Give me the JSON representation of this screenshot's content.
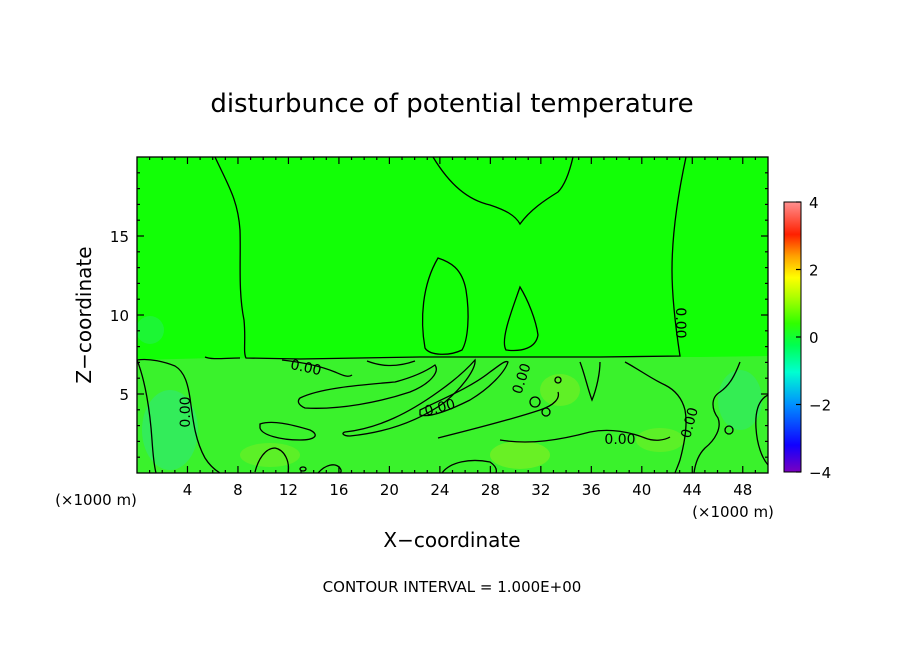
{
  "chart_data": {
    "type": "heatmap",
    "title": "disturbunce of potential temperature",
    "xlabel": "X−coordinate",
    "ylabel": "Z−coordinate",
    "x_unit": "(×1000 m)",
    "x_ticks": [
      4,
      8,
      12,
      16,
      20,
      24,
      28,
      32,
      36,
      40,
      44,
      48
    ],
    "y_ticks": [
      5,
      10,
      15
    ],
    "xlim": [
      0,
      50
    ],
    "ylim": [
      0,
      20
    ],
    "contour_interval_text": "CONTOUR INTERVAL = 1.000E+00",
    "contour_label": "0.00",
    "colorbar": {
      "ticks": [
        4,
        2,
        0,
        -2,
        -4
      ],
      "range": [
        -4,
        4
      ],
      "colors": [
        "#7a00c0",
        "#0000ff",
        "#00a0ff",
        "#00ffd0",
        "#00ff40",
        "#40ff00",
        "#c0ff00",
        "#ffff00",
        "#ffa000",
        "#ff2000",
        "#ff8080"
      ]
    },
    "field_colors": {
      "background": "#12ff06",
      "lower_layer": "#3af22c",
      "cool_patch": "#2ee87a",
      "warm_patch": "#90ee20"
    }
  }
}
